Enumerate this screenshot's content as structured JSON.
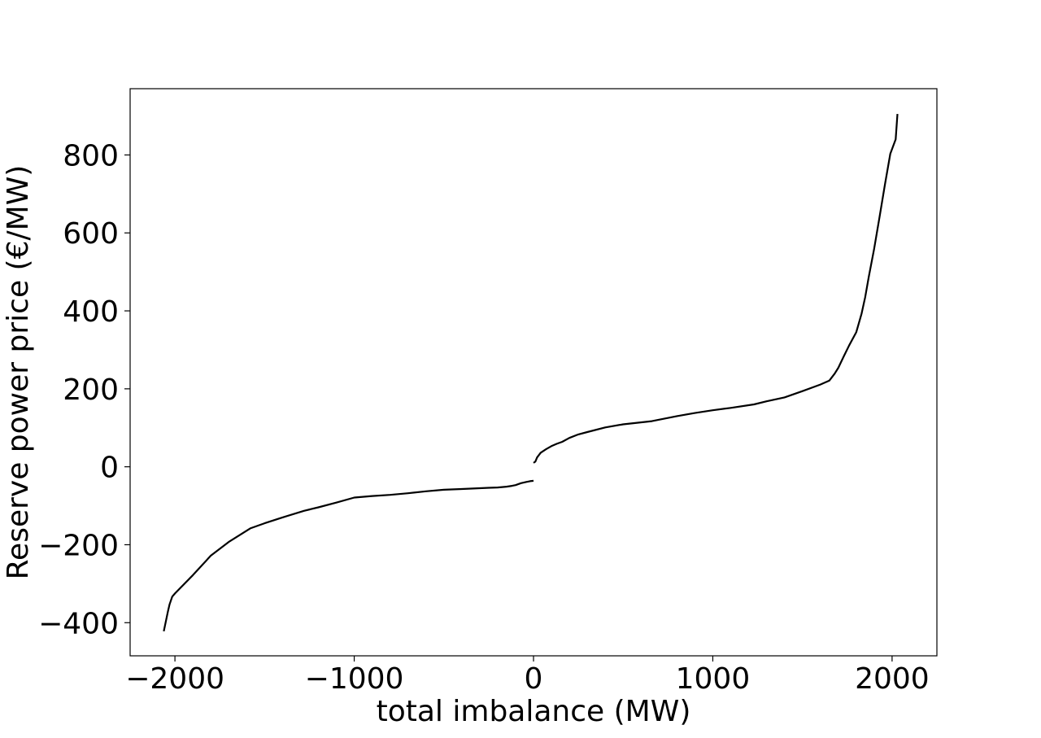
{
  "chart_data": {
    "type": "line",
    "title": "",
    "xlabel": "total imbalance (MW)",
    "ylabel": "Reserve power price (€/MW)",
    "xlim": [
      -2250,
      2250
    ],
    "ylim": [
      -485,
      970
    ],
    "x_ticks": [
      -2000,
      -1000,
      0,
      1000,
      2000
    ],
    "x_tick_labels": [
      "−2000",
      "−1000",
      "0",
      "1000",
      "2000"
    ],
    "y_ticks": [
      -400,
      -200,
      0,
      200,
      400,
      600,
      800
    ],
    "y_tick_labels": [
      "−400",
      "−200",
      "0",
      "200",
      "400",
      "600",
      "800"
    ],
    "grid": false,
    "legend": "none",
    "line_color": "#000000",
    "series": [
      {
        "segment": "negative",
        "x": [
          -2062,
          -2050,
          -2040,
          -2030,
          -2015,
          -2000,
          -1900,
          -1800,
          -1700,
          -1580,
          -1500,
          -1400,
          -1280,
          -1200,
          -1100,
          -1000,
          -900,
          -800,
          -700,
          -600,
          -500,
          -400,
          -300,
          -250,
          -200,
          -150,
          -120,
          -100,
          -70,
          -40,
          -20,
          0
        ],
        "y": [
          -422,
          -395,
          -373,
          -353,
          -333,
          -325,
          -278,
          -228,
          -193,
          -158,
          -145,
          -130,
          -113,
          -104,
          -92,
          -79,
          -75,
          -72,
          -68,
          -63,
          -59,
          -57,
          -55,
          -54,
          -53,
          -51,
          -49,
          -47,
          -42,
          -39,
          -37,
          -36
        ]
      },
      {
        "segment": "positive",
        "x": [
          0,
          10,
          20,
          40,
          70,
          100,
          130,
          160,
          200,
          250,
          300,
          400,
          500,
          660,
          800,
          900,
          1000,
          1100,
          1230,
          1300,
          1400,
          1500,
          1600,
          1650,
          1680,
          1700,
          1730,
          1760,
          1800,
          1830,
          1850,
          1870,
          1900,
          1930,
          1960,
          1990,
          2020,
          2030
        ],
        "y": [
          10,
          13,
          24,
          36,
          45,
          53,
          59,
          64,
          74,
          83,
          89,
          101,
          109,
          117,
          130,
          138,
          145,
          151,
          160,
          168,
          178,
          194,
          211,
          221,
          239,
          254,
          283,
          311,
          345,
          393,
          435,
          487,
          559,
          641,
          724,
          803,
          840,
          905
        ]
      }
    ]
  }
}
